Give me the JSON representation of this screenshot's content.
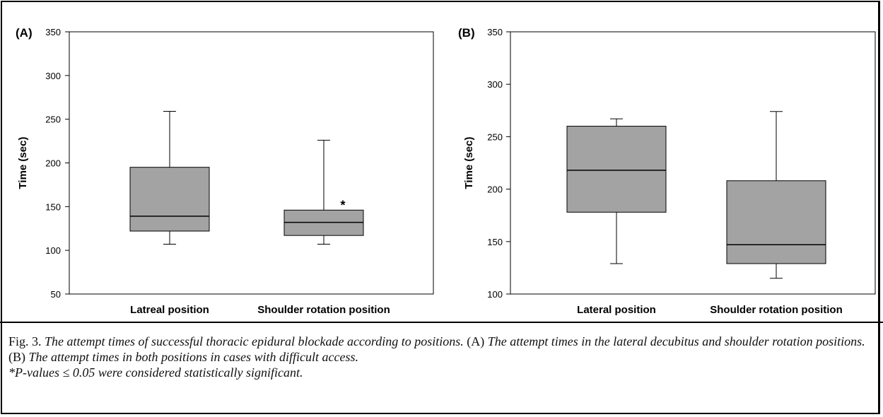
{
  "chart_data": [
    {
      "type": "box",
      "panel_label": "(A)",
      "ylabel": "Time (sec)",
      "ylim": [
        50,
        350
      ],
      "yticks": [
        50,
        100,
        150,
        200,
        250,
        300,
        350
      ],
      "categories": [
        "Latreal position",
        "Shoulder rotation position"
      ],
      "boxes": [
        {
          "whisker_low": 107,
          "q1": 122,
          "median": 139,
          "q3": 195,
          "whisker_high": 259
        },
        {
          "whisker_low": 107,
          "q1": 117,
          "median": 132,
          "q3": 146,
          "whisker_high": 226
        }
      ],
      "annotations": [
        {
          "text": "*",
          "category_index": 1,
          "y": 154
        }
      ],
      "box_color": "#a3a3a3"
    },
    {
      "type": "box",
      "panel_label": "(B)",
      "ylabel": "Time (sec)",
      "ylim": [
        100,
        350
      ],
      "yticks": [
        100,
        150,
        200,
        250,
        300,
        350
      ],
      "categories": [
        "Lateral position",
        "Shoulder rotation position"
      ],
      "boxes": [
        {
          "whisker_low": 129,
          "q1": 178,
          "median": 218,
          "q3": 260,
          "whisker_high": 267
        },
        {
          "whisker_low": 115,
          "q1": 129,
          "median": 147,
          "q3": 208,
          "whisker_high": 274
        }
      ],
      "annotations": [],
      "box_color": "#a3a3a3"
    }
  ],
  "caption": {
    "fig_label": "Fig. 3.",
    "title": "The attempt times of successful thoracic epidural blockade according to positions.",
    "a_label": "(A)",
    "a_text": "The attempt times in the lateral decubitus and shoulder rotation positions.",
    "b_label": "(B)",
    "b_text": "The attempt times in both positions in cases with difficult access.",
    "footnote": "*P-values ≤ 0.05 were considered statistically significant."
  }
}
